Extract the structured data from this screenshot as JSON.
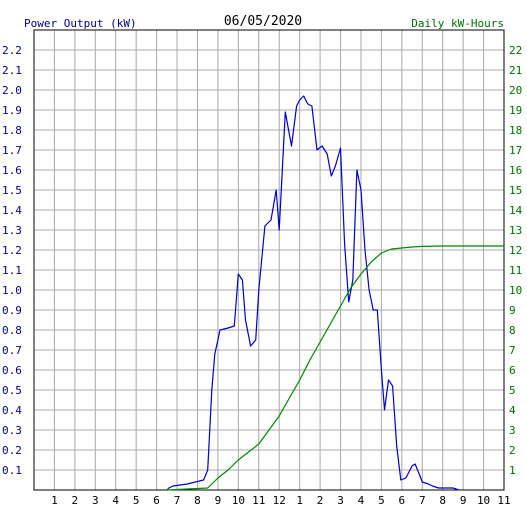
{
  "chart_data": {
    "type": "line",
    "title": "06/05/2020",
    "ylabel": "Power Output (kW)",
    "y2label": "Daily kW-Hours",
    "ylim": [
      0,
      2.3
    ],
    "y2lim": [
      0,
      23
    ],
    "xlim": [
      0,
      23
    ],
    "x_ticks": [
      "1",
      "2",
      "3",
      "4",
      "5",
      "6",
      "7",
      "8",
      "9",
      "10",
      "11",
      "12",
      "1",
      "2",
      "3",
      "4",
      "5",
      "6",
      "7",
      "8",
      "9",
      "10",
      "11"
    ],
    "y_ticks": [
      "0.1",
      "0.2",
      "0.3",
      "0.4",
      "0.5",
      "0.6",
      "0.7",
      "0.8",
      "0.9",
      "1.0",
      "1.1",
      "1.2",
      "1.3",
      "1.4",
      "1.5",
      "1.6",
      "1.7",
      "1.8",
      "1.9",
      "2.0",
      "2.1",
      "2.2"
    ],
    "y2_ticks": [
      "1",
      "2",
      "3",
      "4",
      "5",
      "6",
      "7",
      "8",
      "9",
      "10",
      "11",
      "12",
      "13",
      "14",
      "15",
      "16",
      "17",
      "18",
      "19",
      "20",
      "21",
      "22"
    ],
    "grid": true,
    "colors": {
      "power": "#0000cc",
      "energy": "#008800",
      "grid": "#a8a8a8",
      "left_axis_text": "#00008b",
      "right_axis_text": "#007000"
    },
    "series": [
      {
        "name": "Power Output (kW)",
        "axis": "left",
        "points": [
          [
            6.5,
            0
          ],
          [
            6.6,
            0.01
          ],
          [
            6.8,
            0.02
          ],
          [
            7.5,
            0.03
          ],
          [
            8.3,
            0.05
          ],
          [
            8.5,
            0.1
          ],
          [
            8.7,
            0.5
          ],
          [
            8.85,
            0.68
          ],
          [
            9.0,
            0.75
          ],
          [
            9.1,
            0.8
          ],
          [
            9.5,
            0.81
          ],
          [
            9.8,
            0.82
          ],
          [
            10.0,
            1.08
          ],
          [
            10.2,
            1.05
          ],
          [
            10.35,
            0.85
          ],
          [
            10.6,
            0.72
          ],
          [
            10.85,
            0.75
          ],
          [
            11.0,
            1.0
          ],
          [
            11.3,
            1.32
          ],
          [
            11.6,
            1.35
          ],
          [
            11.85,
            1.5
          ],
          [
            12.0,
            1.3
          ],
          [
            12.3,
            1.89
          ],
          [
            12.6,
            1.72
          ],
          [
            12.85,
            1.92
          ],
          [
            13.0,
            1.95
          ],
          [
            13.2,
            1.97
          ],
          [
            13.4,
            1.93
          ],
          [
            13.6,
            1.92
          ],
          [
            13.85,
            1.7
          ],
          [
            14.1,
            1.72
          ],
          [
            14.35,
            1.68
          ],
          [
            14.55,
            1.57
          ],
          [
            14.75,
            1.62
          ],
          [
            15.0,
            1.71
          ],
          [
            15.2,
            1.23
          ],
          [
            15.4,
            0.94
          ],
          [
            15.6,
            1.05
          ],
          [
            15.8,
            1.6
          ],
          [
            16.0,
            1.5
          ],
          [
            16.2,
            1.2
          ],
          [
            16.4,
            1.0
          ],
          [
            16.6,
            0.9
          ],
          [
            16.8,
            0.9
          ],
          [
            17.0,
            0.6
          ],
          [
            17.15,
            0.4
          ],
          [
            17.35,
            0.55
          ],
          [
            17.55,
            0.52
          ],
          [
            17.75,
            0.22
          ],
          [
            17.95,
            0.05
          ],
          [
            18.2,
            0.06
          ],
          [
            18.5,
            0.12
          ],
          [
            18.65,
            0.13
          ],
          [
            18.85,
            0.08
          ],
          [
            19.0,
            0.04
          ],
          [
            19.3,
            0.03
          ],
          [
            19.5,
            0.02
          ],
          [
            19.8,
            0.01
          ],
          [
            20.5,
            0.01
          ],
          [
            20.8,
            0
          ]
        ]
      },
      {
        "name": "Daily kW-Hours",
        "axis": "right",
        "points": [
          [
            6.5,
            0
          ],
          [
            7.5,
            0.05
          ],
          [
            8.5,
            0.1
          ],
          [
            9.0,
            0.6
          ],
          [
            9.5,
            1.0
          ],
          [
            10.0,
            1.5
          ],
          [
            10.5,
            1.9
          ],
          [
            11.0,
            2.3
          ],
          [
            11.5,
            3.0
          ],
          [
            12.0,
            3.7
          ],
          [
            12.5,
            4.6
          ],
          [
            13.0,
            5.5
          ],
          [
            13.5,
            6.5
          ],
          [
            14.0,
            7.4
          ],
          [
            14.5,
            8.3
          ],
          [
            15.0,
            9.2
          ],
          [
            15.5,
            10.1
          ],
          [
            16.0,
            10.8
          ],
          [
            16.5,
            11.4
          ],
          [
            17.0,
            11.85
          ],
          [
            17.5,
            12.05
          ],
          [
            18.0,
            12.1
          ],
          [
            18.5,
            12.15
          ],
          [
            19.0,
            12.18
          ],
          [
            20.0,
            12.2
          ],
          [
            21.0,
            12.2
          ],
          [
            23.0,
            12.2
          ]
        ]
      }
    ]
  }
}
